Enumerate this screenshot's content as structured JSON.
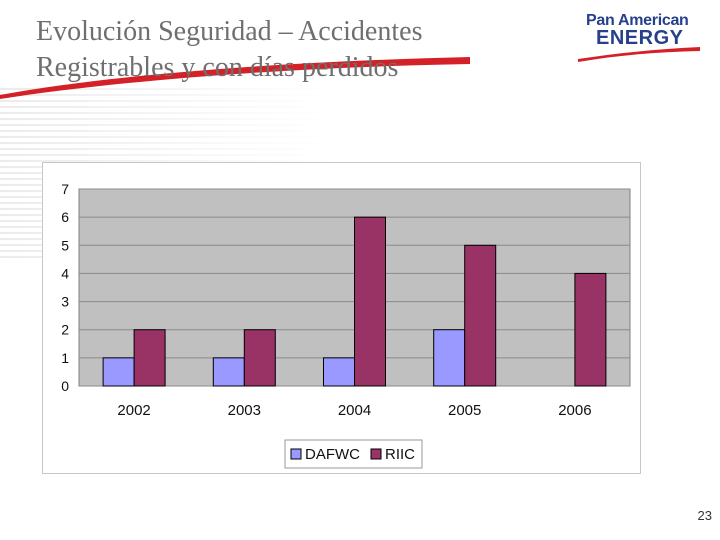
{
  "slide": {
    "title": "Evolución Seguridad – Accidentes Registrables y con días perdidos",
    "page_number": "23"
  },
  "logo": {
    "line1": "Pan American",
    "line2": "ENERGY",
    "color": "#27408b",
    "accent_color": "#d42027"
  },
  "chart_data": {
    "type": "bar",
    "categories": [
      "2002",
      "2003",
      "2004",
      "2005",
      "2006"
    ],
    "series": [
      {
        "name": "DAFWC",
        "values": [
          1,
          1,
          1,
          2,
          0
        ],
        "color": "#9999ff"
      },
      {
        "name": "RIIC",
        "values": [
          2,
          2,
          6,
          5,
          4
        ],
        "color": "#993366"
      }
    ],
    "ylim": [
      0,
      7
    ],
    "yticks": [
      "0",
      "1",
      "2",
      "3",
      "4",
      "5",
      "6",
      "7"
    ],
    "grid": true,
    "plot_background": "#c0c0c0",
    "legend_position": "bottom",
    "title": "",
    "xlabel": "",
    "ylabel": ""
  }
}
